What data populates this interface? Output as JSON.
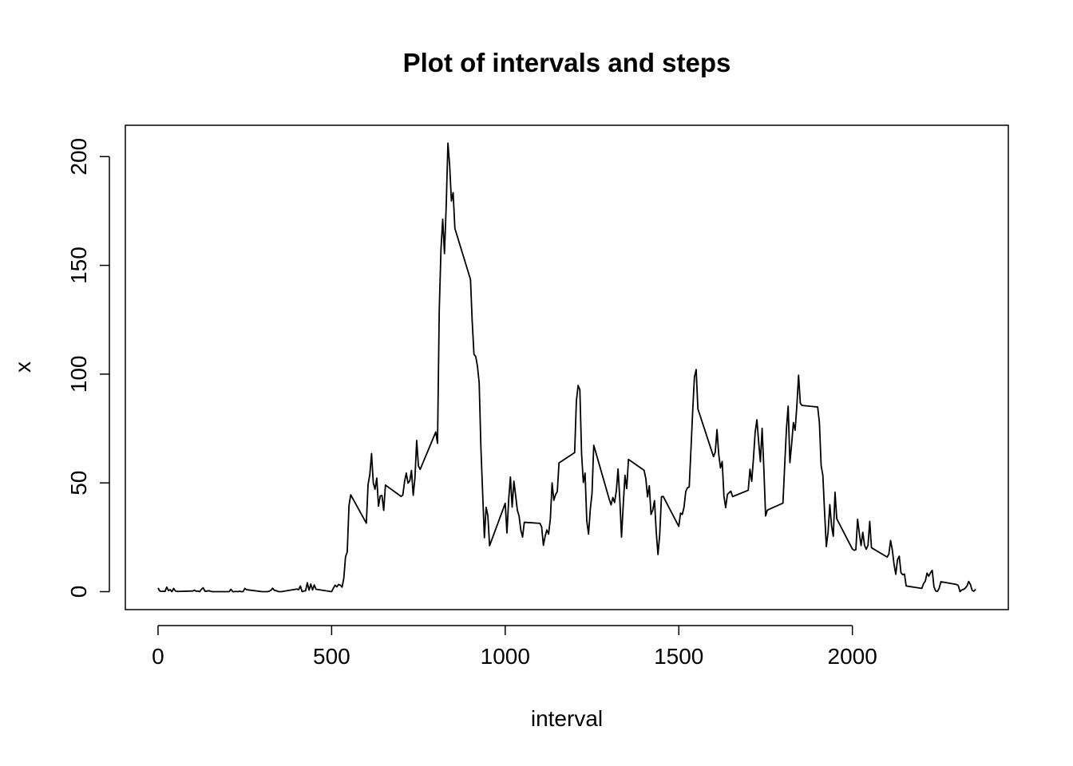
{
  "chart_data": {
    "type": "line",
    "title": "Plot of intervals and steps",
    "x_label": "interval",
    "y_label": "x",
    "color": "#000000",
    "xlim": [
      -94.2,
      2449.2
    ],
    "ylim": [
      -8.25,
      214.4
    ],
    "xticks": [
      0,
      500,
      1000,
      1500,
      2000
    ],
    "yticks": [
      0,
      50,
      100,
      150,
      200
    ],
    "x": [
      0,
      5,
      10,
      15,
      20,
      25,
      30,
      35,
      40,
      45,
      50,
      55,
      100,
      105,
      110,
      115,
      120,
      125,
      130,
      135,
      140,
      145,
      150,
      155,
      200,
      205,
      210,
      215,
      220,
      225,
      230,
      235,
      240,
      245,
      250,
      255,
      300,
      305,
      310,
      315,
      320,
      325,
      330,
      335,
      340,
      345,
      350,
      355,
      400,
      405,
      410,
      415,
      420,
      425,
      430,
      435,
      440,
      445,
      450,
      455,
      500,
      505,
      510,
      515,
      520,
      525,
      530,
      535,
      540,
      545,
      550,
      555,
      600,
      605,
      610,
      615,
      620,
      625,
      630,
      635,
      640,
      645,
      650,
      655,
      700,
      705,
      710,
      715,
      720,
      725,
      730,
      735,
      740,
      745,
      750,
      755,
      800,
      805,
      810,
      815,
      820,
      825,
      830,
      835,
      840,
      845,
      850,
      855,
      900,
      905,
      910,
      915,
      920,
      925,
      930,
      935,
      940,
      945,
      950,
      955,
      1000,
      1005,
      1010,
      1015,
      1020,
      1025,
      1030,
      1035,
      1040,
      1045,
      1050,
      1055,
      1100,
      1105,
      1110,
      1115,
      1120,
      1125,
      1130,
      1135,
      1140,
      1145,
      1150,
      1155,
      1200,
      1205,
      1210,
      1215,
      1220,
      1225,
      1230,
      1235,
      1240,
      1245,
      1250,
      1255,
      1300,
      1305,
      1310,
      1315,
      1320,
      1325,
      1330,
      1335,
      1340,
      1345,
      1350,
      1355,
      1400,
      1405,
      1410,
      1415,
      1420,
      1425,
      1430,
      1435,
      1440,
      1445,
      1450,
      1455,
      1500,
      1505,
      1510,
      1515,
      1520,
      1525,
      1530,
      1535,
      1540,
      1545,
      1550,
      1555,
      1600,
      1605,
      1610,
      1615,
      1620,
      1625,
      1630,
      1635,
      1640,
      1645,
      1650,
      1655,
      1700,
      1705,
      1710,
      1715,
      1720,
      1725,
      1730,
      1735,
      1740,
      1745,
      1750,
      1755,
      1800,
      1805,
      1810,
      1815,
      1820,
      1825,
      1830,
      1835,
      1840,
      1845,
      1850,
      1855,
      1900,
      1905,
      1910,
      1915,
      1920,
      1925,
      1930,
      1935,
      1940,
      1945,
      1950,
      1955,
      2000,
      2005,
      2010,
      2015,
      2020,
      2025,
      2030,
      2035,
      2040,
      2045,
      2050,
      2055,
      2100,
      2105,
      2110,
      2115,
      2120,
      2125,
      2130,
      2135,
      2140,
      2145,
      2150,
      2155,
      2200,
      2205,
      2210,
      2215,
      2220,
      2225,
      2230,
      2235,
      2240,
      2245,
      2250,
      2255,
      2300,
      2305,
      2310,
      2315,
      2320,
      2325,
      2330,
      2335,
      2340,
      2345,
      2350,
      2355
    ],
    "y": [
      1.7,
      0.3,
      0.1,
      0.2,
      0.1,
      2.1,
      0.5,
      0.9,
      0,
      1.5,
      0.3,
      0.1,
      0.3,
      0.7,
      0.2,
      0.3,
      0,
      1.1,
      1.8,
      0.2,
      0.2,
      0.4,
      0.3,
      0,
      0,
      0,
      1.1,
      0,
      0,
      0.1,
      0,
      0.2,
      0,
      0,
      1.5,
      0.9,
      0,
      0,
      0,
      0,
      0.2,
      0.6,
      1.6,
      0.6,
      0.5,
      0.1,
      0,
      0,
      1.2,
      0.9,
      2.6,
      0,
      0.3,
      0.4,
      4.1,
      0.7,
      3.5,
      0.8,
      3.1,
      1.1,
      0,
      1.6,
      3.0,
      2.2,
      3.3,
      3.0,
      2.1,
      6.1,
      16.0,
      18.3,
      39.5,
      44.5,
      31.5,
      49.3,
      53.8,
      63.5,
      50.0,
      47.1,
      52.2,
      39.3,
      44.0,
      44.2,
      37.4,
      49.0,
      43.8,
      44.4,
      50.5,
      54.5,
      49.9,
      50.9,
      55.7,
      44.3,
      52.3,
      69.5,
      57.8,
      56.2,
      73.4,
      68.2,
      129.4,
      157.5,
      171.2,
      155.4,
      177.3,
      206.2,
      195.9,
      179.6,
      183.4,
      167.0,
      143.5,
      124.0,
      109.1,
      108.1,
      103.7,
      96.0,
      66.2,
      45.2,
      24.8,
      38.8,
      35.0,
      21.1,
      40.6,
      27.0,
      42.4,
      52.7,
      38.9,
      50.8,
      44.3,
      37.4,
      34.7,
      28.3,
      25.1,
      31.9,
      31.4,
      29.7,
      21.3,
      25.5,
      28.4,
      26.5,
      33.4,
      50.0,
      42.0,
      44.6,
      46.0,
      59.2,
      63.9,
      87.7,
      94.8,
      92.8,
      63.4,
      50.2,
      54.5,
      32.4,
      26.5,
      37.7,
      45.1,
      67.3,
      42.3,
      39.9,
      43.3,
      41.0,
      46.2,
      56.4,
      42.8,
      25.1,
      40.0,
      53.5,
      47.4,
      60.8,
      55.8,
      52.0,
      43.6,
      48.7,
      35.5,
      37.5,
      41.8,
      27.5,
      17.1,
      26.1,
      43.6,
      43.8,
      30.0,
      36.1,
      35.5,
      38.8,
      46.0,
      47.8,
      48.1,
      65.3,
      82.9,
      98.7,
      102.1,
      84.0,
      62.1,
      64.1,
      74.5,
      63.2,
      56.9,
      59.8,
      43.9,
      38.6,
      44.7,
      45.5,
      46.2,
      43.7,
      46.6,
      56.3,
      50.7,
      61.2,
      73.4,
      79.0,
      68.9,
      59.7,
      75.1,
      56.5,
      34.8,
      37.5,
      40.7,
      58.0,
      74.7,
      85.3,
      59.3,
      67.8,
      77.7,
      74.2,
      85.3,
      99.5,
      86.6,
      85.6,
      84.9,
      77.8,
      58.0,
      53.4,
      36.3,
      20.7,
      27.4,
      40.0,
      30.2,
      25.5,
      45.7,
      33.5,
      19.6,
      19.0,
      19.3,
      33.3,
      26.8,
      21.2,
      27.3,
      21.3,
      19.5,
      21.3,
      32.3,
      20.2,
      15.9,
      17.2,
      23.5,
      19.2,
      12.5,
      8.0,
      14.7,
      16.3,
      8.7,
      7.8,
      8.1,
      2.6,
      1.5,
      3.7,
      4.8,
      8.5,
      7.1,
      8.7,
      9.8,
      2.2,
      0.3,
      0.1,
      1.6,
      4.6,
      3.3,
      2.8,
      0,
      0.8,
      1.0,
      1.6,
      2.6,
      4.7,
      3.3,
      0.6,
      0.2,
      1.1
    ]
  }
}
